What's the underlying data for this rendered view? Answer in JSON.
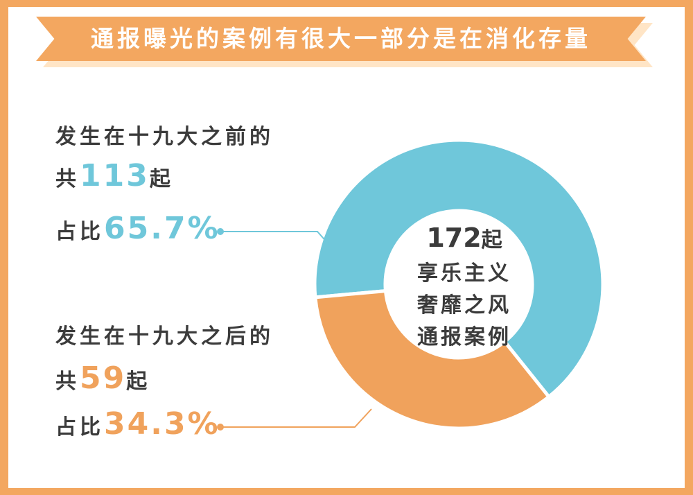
{
  "title": "通报曝光的案例有很大一部分是在消化存量",
  "before": {
    "line1": "发生在十九大之前的",
    "count_prefix": "共",
    "count": "113",
    "count_suffix": "起",
    "pct_prefix": "占比",
    "pct": "65.7%"
  },
  "after": {
    "line1": "发生在十九大之后的",
    "count_prefix": "共",
    "count": "59",
    "count_suffix": "起",
    "pct_prefix": "占比",
    "pct": "34.3%"
  },
  "center": {
    "total": "172",
    "total_unit": "起",
    "line1": "享乐主义",
    "line2": "奢靡之风",
    "line3": "通报案例"
  },
  "colors": {
    "blue": "#6fc7da",
    "orange": "#f0a25c",
    "background": "#f3a760",
    "text": "#3b3b3b"
  },
  "chart_data": {
    "type": "pie",
    "donut": true,
    "title": "",
    "total": 172,
    "series": [
      {
        "name": "发生在十九大之前的",
        "value": 113,
        "percent": 65.7,
        "color": "#6fc7da"
      },
      {
        "name": "发生在十九大之后的",
        "value": 59,
        "percent": 34.3,
        "color": "#f0a25c"
      }
    ]
  }
}
